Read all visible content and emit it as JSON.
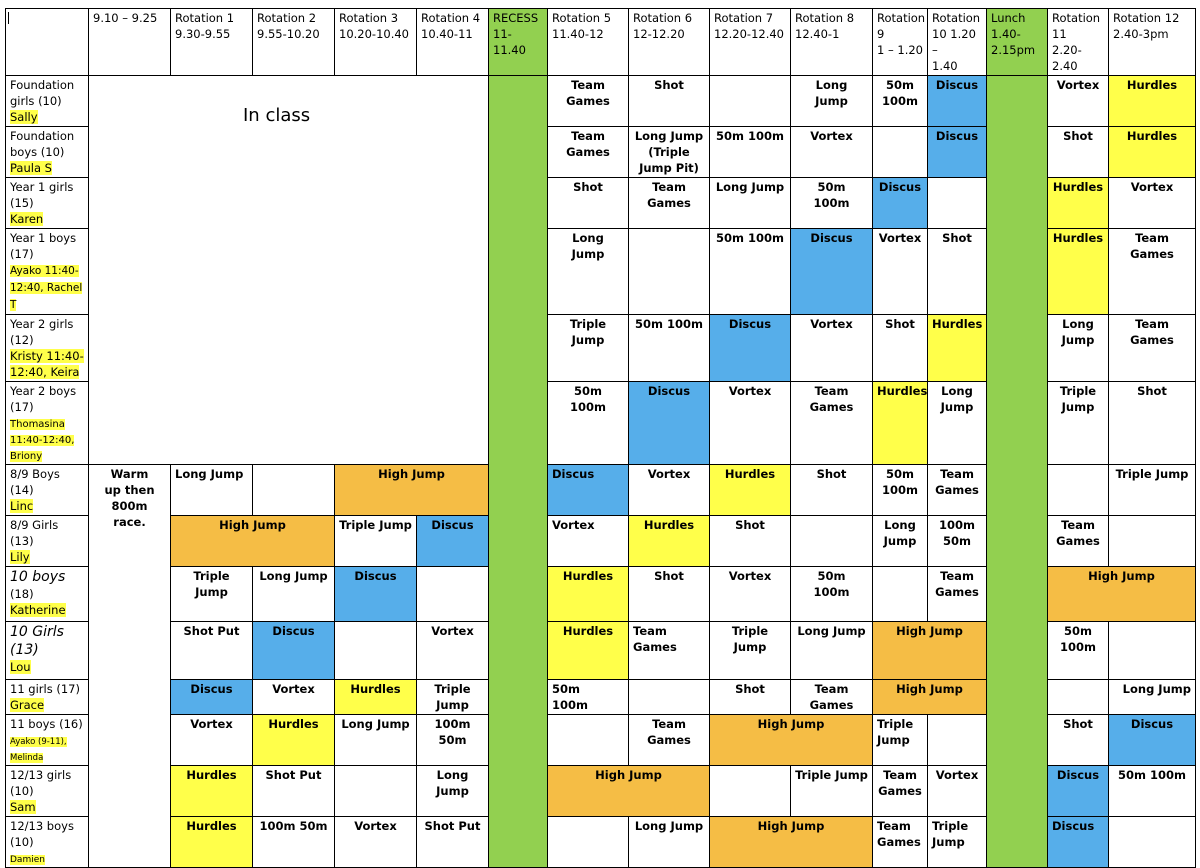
{
  "header": [
    "9.10 – 9.25",
    "Rotation 1\n9.30-9.55",
    "Rotation 2\n9.55-10.20",
    "Rotation 3\n10.20-10.40",
    "Rotation 4\n10.40-11",
    "RECESS\n11-11.40",
    "Rotation 5\n11.40-12",
    "Rotation 6\n12-12.20",
    "Rotation 7\n12.20-12.40",
    "Rotation 8\n12.40-1",
    "Rotation 9\n1 – 1.20",
    "Rotation\n10 1.20 –\n1.40",
    "Lunch\n1.40-\n2.15pm",
    "Rotation\n11\n2.20-2.40",
    "Rotation 12\n2.40-3pm"
  ],
  "in_class": "In class",
  "warmup": "Warm\nup then\n800m\nrace.",
  "groups": {
    "g1": {
      "name": "Foundation\ngirls (10)",
      "teacher": "Sally"
    },
    "g2": {
      "name": "Foundation\nboys (10)",
      "teacher": "Paula S"
    },
    "g3": {
      "name": "Year 1 girls\n(15)",
      "teacher": "Karen"
    },
    "g4": {
      "name": "Year 1 boys\n(17)",
      "teacher": "Ayako 11:40-\n12:40, Rachel\nT"
    },
    "g5": {
      "name": "Year 2 girls\n(12)",
      "teacher": "Kristy 11:40-\n12:40, Keira"
    },
    "g6": {
      "name": "Year 2 boys\n(17)",
      "teacher": "Thomasina\n11:40-12:40,\nBriony"
    },
    "g7": {
      "name": "8/9 Boys\n(14)",
      "teacher": "Linc"
    },
    "g8": {
      "name": "8/9 Girls\n(13)",
      "teacher": "Lily"
    },
    "g9": {
      "name": "10 boys",
      "name2": "(18)",
      "teacher": "Katherine"
    },
    "g10": {
      "name": "10 Girls",
      "name2": "(13)",
      "teacher": "Lou"
    },
    "g11": {
      "name": "11 girls (17)",
      "teacher": "Grace"
    },
    "g12": {
      "name": "11 boys (16)",
      "teacher": "Ayako (9-11),\nMelinda"
    },
    "g13": {
      "name": "12/13 girls\n(10)",
      "teacher": "Sam"
    },
    "g14": {
      "name": "12/13 boys\n(10)",
      "teacher": "Damien"
    }
  },
  "cells": {
    "r1": {
      "r5": "Team\nGames",
      "r6": "Shot",
      "r7": "",
      "r8": "Long\nJump",
      "r9": "50m\n100m",
      "r10": "Discus",
      "r11": "Vortex",
      "r12": "Hurdles"
    },
    "r2": {
      "r5": "Team\nGames",
      "r6": "Long Jump\n(Triple\nJump Pit)",
      "r7": "50m 100m",
      "r8": "Vortex",
      "r9": "",
      "r10": "Discus",
      "r11": "Shot",
      "r12": "Hurdles"
    },
    "r3": {
      "r5": "Shot",
      "r6": "Team\nGames",
      "r7": "Long Jump",
      "r8": "50m\n100m",
      "r9": "Discus",
      "r10": "",
      "r11": "Hurdles",
      "r12": "Vortex"
    },
    "r4": {
      "r5": "Long\nJump",
      "r6": "",
      "r7": "50m 100m",
      "r8": "Discus",
      "r9": "Vortex",
      "r10": "Shot",
      "r11": "Hurdles",
      "r12": "Team\nGames"
    },
    "r5": {
      "r5": "Triple\nJump",
      "r6": "50m 100m",
      "r7": "Discus",
      "r8": "Vortex",
      "r9": "Shot",
      "r10": "Hurdles",
      "r11": "Long\nJump",
      "r12": "Team\nGames"
    },
    "r6": {
      "r5": "50m\n100m",
      "r6": "Discus",
      "r7": "Vortex",
      "r8": "Team\nGames",
      "r9": "Hurdles",
      "r10": "Long\nJump",
      "r11": "Triple\nJump",
      "r12": "Shot"
    },
    "r7": {
      "r1": "Long Jump",
      "r2": "",
      "r34": "High Jump",
      "r5": "Discus",
      "r6": "Vortex",
      "r7": "Hurdles",
      "r8": "Shot",
      "r9": "50m\n100m",
      "r10": "Team\nGames",
      "r11": "",
      "r12": "Triple Jump"
    },
    "r8": {
      "r12a": "High Jump",
      "r3": "Triple Jump",
      "r4": "Discus",
      "r5": "Vortex",
      "r6": "Hurdles",
      "r7": "Shot",
      "r8": "",
      "r9": "Long\nJump",
      "r10": "100m\n50m",
      "r11": "Team\nGames",
      "r12": ""
    },
    "r9": {
      "r1": "Triple\nJump",
      "r2": "Long Jump",
      "r3": "Discus",
      "r4": "",
      "r5": "Hurdles",
      "r6": "Shot",
      "r7": "Vortex",
      "r8": "50m\n100m",
      "r9": "",
      "r10": "Team\nGames",
      "r1112": "High Jump"
    },
    "r10": {
      "r1": "Shot Put",
      "r2": "Discus",
      "r3": "",
      "r4": "Vortex",
      "r5": "Hurdles",
      "r6": "Team\nGames",
      "r7": "Triple Jump",
      "r8": "Long Jump",
      "r910": "High Jump",
      "r11": "50m\n100m",
      "r12": ""
    },
    "r11": {
      "r1": "Discus",
      "r2": "Vortex",
      "r3": "Hurdles",
      "r4": "Triple\nJump",
      "r5": "50m\n100m",
      "r6": "",
      "r7": "Shot",
      "r8": "Team\nGames",
      "r910": "High Jump",
      "r11": "",
      "r12": "Long Jump"
    },
    "r12": {
      "r1": "Vortex",
      "r2": "Hurdles",
      "r3": "Long Jump",
      "r4": "100m 50m",
      "r5": "",
      "r6": "Team\nGames",
      "r78": "High Jump",
      "r9": "Triple\nJump",
      "r10": "",
      "r11": "Shot",
      "r12": "Discus"
    },
    "r13": {
      "r1": "Hurdles",
      "r2": "Shot Put",
      "r3": "",
      "r4": "Long\nJump",
      "r56": "High Jump",
      "r7": "",
      "r8": "Triple Jump",
      "r9": "Team\nGames",
      "r10": "Vortex",
      "r11": "Discus",
      "r12": "50m 100m"
    },
    "r14": {
      "r1": "Hurdles",
      "r2": "100m 50m",
      "r3": "Vortex",
      "r4": "Shot Put",
      "r5": "",
      "r6": "Long Jump",
      "r78": "High Jump",
      "r9": "Team\nGames",
      "r10": "Triple\nJump",
      "r11": "Discus",
      "r12": ""
    }
  },
  "colors": {
    "green": "#92d050",
    "blue": "#56aeea",
    "yellow": "#ffff4a",
    "orange": "#f5bd45"
  }
}
